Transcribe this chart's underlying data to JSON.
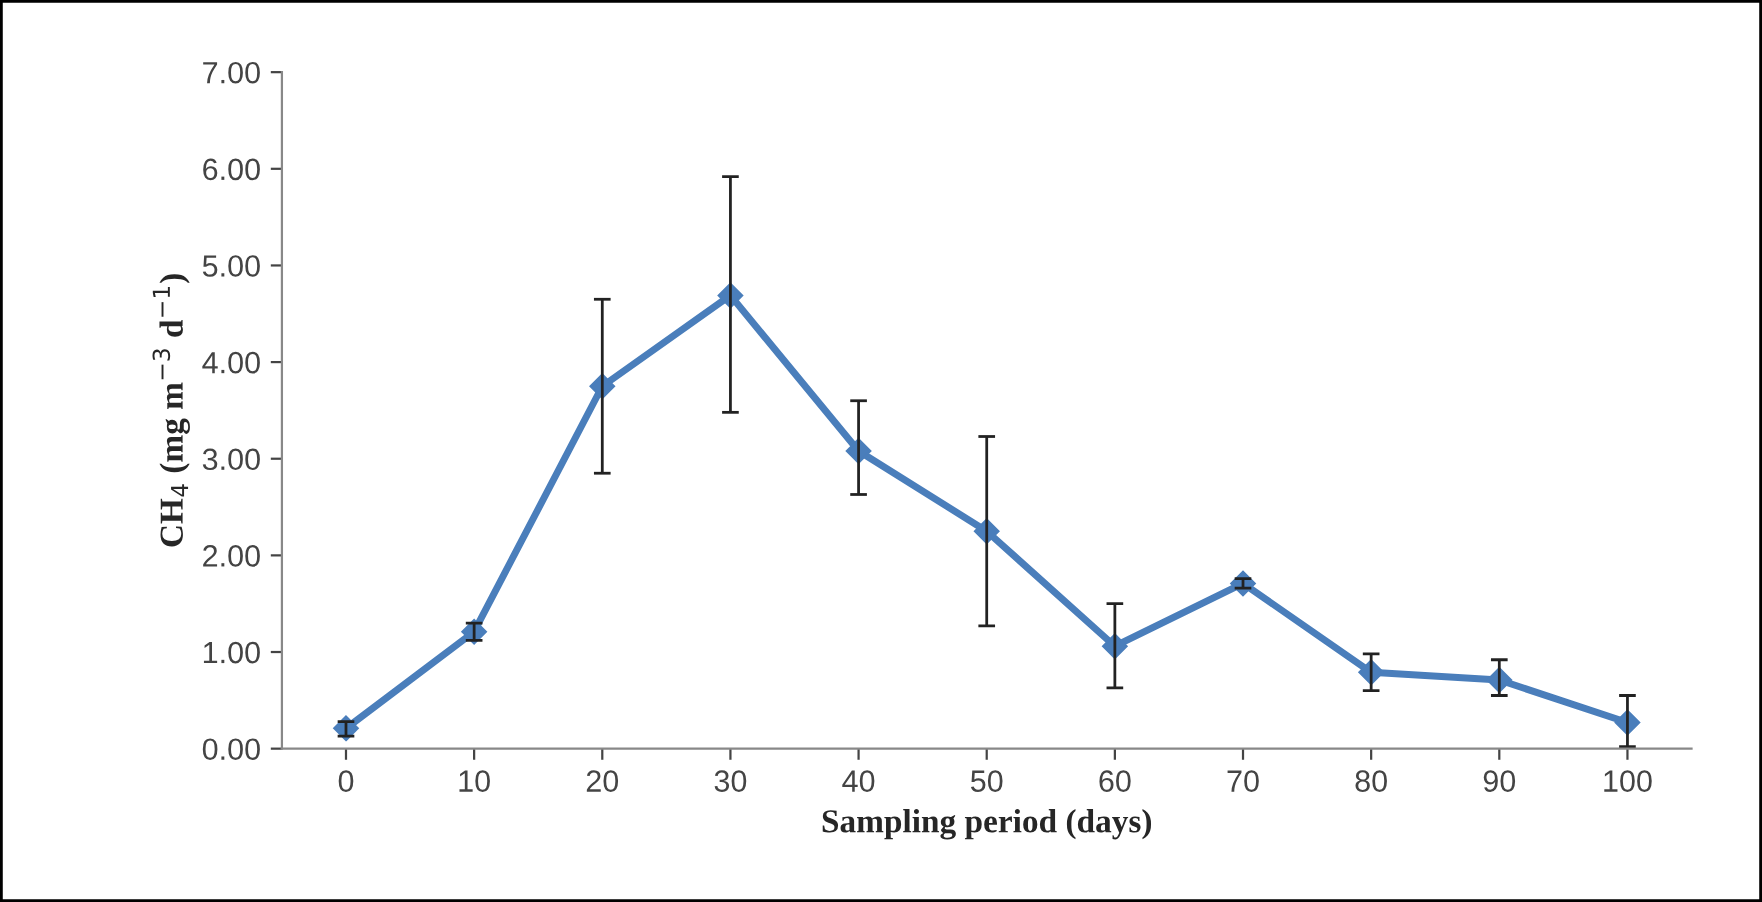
{
  "chart_data": {
    "type": "line",
    "xlabel": "Sampling period (days)",
    "ylabel": "CH$_{4}$ (mg m$^{−3}$ d$^{−1}$)",
    "x": [
      0,
      10,
      20,
      30,
      40,
      50,
      60,
      70,
      80,
      90,
      100
    ],
    "series": [
      {
        "color": "#4a7ebb",
        "values": [
          0.21,
          1.21,
          3.75,
          4.69,
          3.08,
          2.25,
          1.06,
          1.71,
          0.79,
          0.71,
          0.27
        ],
        "errors": [
          [
            0.13,
            0.28
          ],
          [
            1.12,
            1.3
          ],
          [
            2.85,
            4.65
          ],
          [
            3.48,
            5.92
          ],
          [
            2.63,
            3.6
          ],
          [
            1.27,
            3.23
          ],
          [
            0.63,
            1.5
          ],
          [
            1.66,
            1.76
          ],
          [
            0.6,
            0.98
          ],
          [
            0.55,
            0.92
          ],
          [
            0.02,
            0.55
          ]
        ]
      }
    ],
    "xlim": [
      -5,
      105
    ],
    "xticks": [
      0,
      10,
      20,
      30,
      40,
      50,
      60,
      70,
      80,
      90,
      100
    ],
    "ylim": [
      0,
      7
    ],
    "yticks": [
      {
        "value": 0,
        "label": "0.00"
      },
      {
        "value": 1,
        "label": "1.00"
      },
      {
        "value": 2,
        "label": "2.00"
      },
      {
        "value": 3,
        "label": "3.00"
      },
      {
        "value": 4,
        "label": "4.00"
      },
      {
        "value": 5,
        "label": "5.00"
      },
      {
        "value": 6,
        "label": "6.00"
      },
      {
        "value": 7,
        "label": "7.00"
      }
    ],
    "grid": false,
    "legend": false,
    "marker": "diamond",
    "line_style": "solid"
  }
}
